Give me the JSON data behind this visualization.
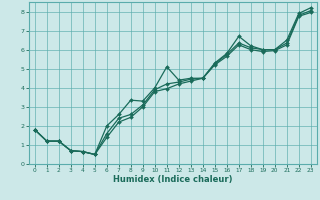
{
  "title": "",
  "xlabel": "Humidex (Indice chaleur)",
  "ylabel": "",
  "bg_color": "#cce8e8",
  "grid_color": "#5aacac",
  "line_color": "#1a6b5a",
  "xlim": [
    -0.5,
    23.5
  ],
  "ylim": [
    0,
    8.5
  ],
  "xticks": [
    0,
    1,
    2,
    3,
    4,
    5,
    6,
    7,
    8,
    9,
    10,
    11,
    12,
    13,
    14,
    15,
    16,
    17,
    18,
    19,
    20,
    21,
    22,
    23
  ],
  "yticks": [
    0,
    1,
    2,
    3,
    4,
    5,
    6,
    7,
    8
  ],
  "series1": [
    [
      0,
      1.8
    ],
    [
      1,
      1.2
    ],
    [
      2,
      1.2
    ],
    [
      3,
      0.7
    ],
    [
      4,
      0.65
    ],
    [
      5,
      0.5
    ],
    [
      6,
      2.0
    ],
    [
      7,
      2.6
    ],
    [
      8,
      3.35
    ],
    [
      9,
      3.3
    ],
    [
      10,
      4.0
    ],
    [
      11,
      5.1
    ],
    [
      12,
      4.4
    ],
    [
      13,
      4.5
    ],
    [
      14,
      4.5
    ],
    [
      15,
      5.3
    ],
    [
      16,
      5.8
    ],
    [
      17,
      6.7
    ],
    [
      18,
      6.2
    ],
    [
      19,
      6.0
    ],
    [
      20,
      6.0
    ],
    [
      21,
      6.5
    ],
    [
      22,
      7.9
    ],
    [
      23,
      8.2
    ]
  ],
  "series2": [
    [
      0,
      1.8
    ],
    [
      1,
      1.2
    ],
    [
      2,
      1.2
    ],
    [
      3,
      0.7
    ],
    [
      4,
      0.65
    ],
    [
      5,
      0.5
    ],
    [
      6,
      1.6
    ],
    [
      7,
      2.4
    ],
    [
      8,
      2.6
    ],
    [
      9,
      3.1
    ],
    [
      10,
      3.9
    ],
    [
      11,
      4.2
    ],
    [
      12,
      4.3
    ],
    [
      13,
      4.45
    ],
    [
      14,
      4.5
    ],
    [
      15,
      5.25
    ],
    [
      16,
      5.75
    ],
    [
      17,
      6.35
    ],
    [
      18,
      6.1
    ],
    [
      19,
      6.0
    ],
    [
      20,
      6.0
    ],
    [
      21,
      6.35
    ],
    [
      22,
      7.8
    ],
    [
      23,
      8.05
    ]
  ],
  "series3": [
    [
      0,
      1.8
    ],
    [
      1,
      1.2
    ],
    [
      2,
      1.2
    ],
    [
      3,
      0.7
    ],
    [
      4,
      0.65
    ],
    [
      5,
      0.5
    ],
    [
      6,
      1.4
    ],
    [
      7,
      2.2
    ],
    [
      8,
      2.45
    ],
    [
      9,
      3.0
    ],
    [
      10,
      3.8
    ],
    [
      11,
      3.95
    ],
    [
      12,
      4.2
    ],
    [
      13,
      4.35
    ],
    [
      14,
      4.5
    ],
    [
      15,
      5.2
    ],
    [
      16,
      5.65
    ],
    [
      17,
      6.25
    ],
    [
      18,
      6.0
    ],
    [
      19,
      5.9
    ],
    [
      20,
      5.95
    ],
    [
      21,
      6.25
    ],
    [
      22,
      7.75
    ],
    [
      23,
      7.95
    ]
  ]
}
